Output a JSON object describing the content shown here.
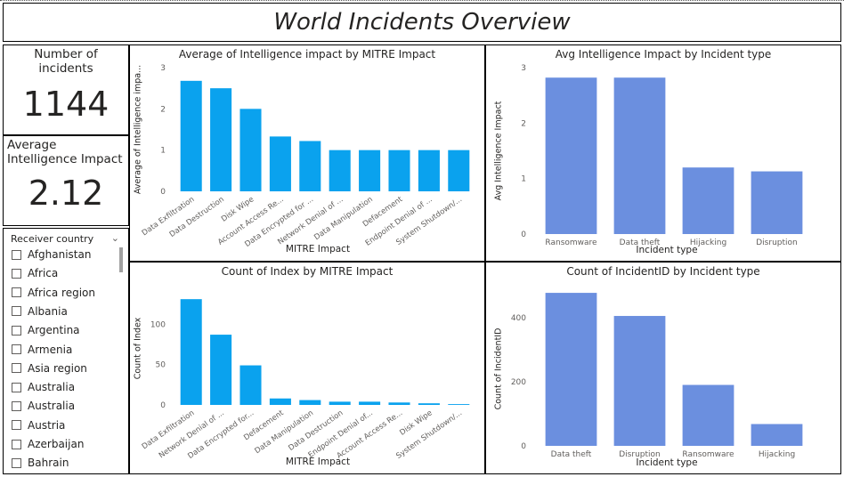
{
  "title": "World Incidents Overview",
  "cards": {
    "incidents": {
      "label": "Number of incidents",
      "value": "1144"
    },
    "avg_impact": {
      "label": "Average Intelligence Impact",
      "value": "2.12"
    }
  },
  "slicer": {
    "header": "Receiver country",
    "items": [
      "Afghanistan",
      "Africa",
      "Africa region",
      "Albania",
      "Argentina",
      "Armenia",
      "Asia region",
      "Australia",
      "Australia",
      "Austria",
      "Azerbaijan",
      "Bahrain"
    ]
  },
  "colors": {
    "bar_blue": "#0aa2ee",
    "bar_periwinkle": "#6b8fdf",
    "text": "#252423",
    "axis_text": "#605e5c"
  },
  "chart_data": [
    {
      "id": "c1",
      "type": "bar",
      "title": "Average of Intelligence impact by MITRE Impact",
      "xlabel": "MITRE Impact",
      "ylabel": "Average of Intelligence impa...",
      "ylim": [
        0,
        3
      ],
      "yticks": [
        0,
        1,
        2,
        3
      ],
      "categories": [
        "Data Exfiltration",
        "Data Destruction",
        "Disk Wipe",
        "Account Access Re...",
        "Data Encrypted for ...",
        "Network Denial of ...",
        "Data Manipulation",
        "Defacement",
        "Endpoint Denial of ...",
        "System Shutdown/..."
      ],
      "values": [
        2.68,
        2.5,
        2.0,
        1.33,
        1.22,
        1.0,
        1.0,
        1.0,
        1.0,
        1.0
      ],
      "color": "#0aa2ee",
      "rotate": true
    },
    {
      "id": "c2",
      "type": "bar",
      "title": "Avg Intelligence Impact by Incident type",
      "xlabel": "Incident type",
      "ylabel": "Avg Intelligence Impact",
      "ylim": [
        0,
        3
      ],
      "yticks": [
        0,
        1,
        2,
        3
      ],
      "categories": [
        "Ransomware",
        "Data theft",
        "Hijacking",
        "Disruption"
      ],
      "values": [
        2.82,
        2.82,
        1.2,
        1.13
      ],
      "color": "#6b8fdf",
      "rotate": false
    },
    {
      "id": "c3",
      "type": "bar",
      "title": "Count of Index by MITRE Impact",
      "xlabel": "MITRE Impact",
      "ylabel": "Count of Index",
      "ylim": [
        0,
        140
      ],
      "yticks": [
        0,
        50,
        100
      ],
      "categories": [
        "Data Exfiltration",
        "Network Denial of ...",
        "Data Encrypted for...",
        "Defacement",
        "Data Manipulation",
        "Data Destruction",
        "Endpoint Denial of...",
        "Account Access Re...",
        "Disk Wipe",
        "System Shutdown/..."
      ],
      "values": [
        131,
        87,
        49,
        8,
        6,
        4,
        4,
        3,
        2,
        1
      ],
      "color": "#0aa2ee",
      "rotate": true
    },
    {
      "id": "c4",
      "type": "bar",
      "title": "Count of IncidentID by Incident type",
      "xlabel": "Incident type",
      "ylabel": "Count of IncidentID",
      "ylim": [
        0,
        480
      ],
      "yticks": [
        0,
        200,
        400
      ],
      "categories": [
        "Data theft",
        "Disruption",
        "Ransomware",
        "Hijacking"
      ],
      "values": [
        477,
        405,
        190,
        68
      ],
      "color": "#6b8fdf",
      "rotate": false
    }
  ]
}
